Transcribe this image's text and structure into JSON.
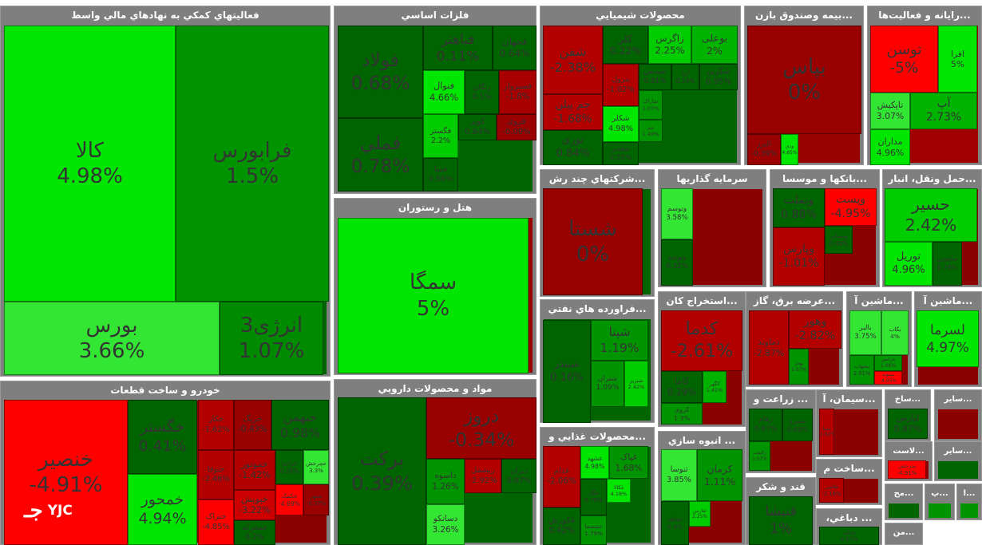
{
  "sectors": [
    {
      "title": "فعالیتهاي كمكي به نهادهاي مالي واسط",
      "fill": "#006400",
      "tiles": [
        {
          "symbol": "کالا",
          "change": "4.98%",
          "color": "#00e600"
        },
        {
          "symbol": "فرابورس",
          "change": "1.5%",
          "color": "#009400"
        },
        {
          "symbol": "بورس",
          "change": "3.66%",
          "color": "#33e633"
        },
        {
          "symbol": "انرژی3",
          "change": "1.07%",
          "color": "#008a00"
        }
      ]
    },
    {
      "title": "خودرو و ساخت قطعات",
      "fill": "#8b0000",
      "tiles": [
        {
          "symbol": "خنصیر",
          "change": "-4.91%",
          "color": "#ff0000"
        },
        {
          "symbol": "خگستر",
          "change": "0.41%",
          "color": "#006400"
        },
        {
          "symbol": "خمحور",
          "change": "4.94%",
          "color": "#00e600"
        },
        {
          "symbol": "خکار",
          "change": "-1.62%",
          "color": "#b30000"
        },
        {
          "symbol": "خریگ",
          "change": "-0.43%",
          "color": "#990000"
        },
        {
          "symbol": "خبهمن",
          "change": "0.98%",
          "color": "#006400"
        },
        {
          "symbol": "ختوقا",
          "change": "-2.46%",
          "color": "#b30000"
        },
        {
          "symbol": "خموتور",
          "change": "-1.42%",
          "color": "#b30000"
        },
        {
          "symbol": "ختراک",
          "change": "-4.85%",
          "color": "#ff0000"
        },
        {
          "symbol": "خزامیا",
          "change": "0.28%",
          "color": "#006400"
        },
        {
          "symbol": "خچرخش",
          "change": "3.3%",
          "color": "#33e633"
        },
        {
          "symbol": "خپویش",
          "change": "-3.22%",
          "color": "#cc0000"
        },
        {
          "symbol": "خکمک",
          "change": "-4.69%",
          "color": "#ff0000"
        },
        {
          "symbol": "خمهر",
          "change": "-0.37%",
          "color": "#990000"
        },
        {
          "symbol": "خمحرکه",
          "change": "0.2%",
          "color": "#006400"
        }
      ]
    },
    {
      "title": "فلزات اساسي",
      "fill": "#006400",
      "tiles": [
        {
          "symbol": "فولاد",
          "change": "0.68%",
          "color": "#006400"
        },
        {
          "symbol": "فملي",
          "change": "0.78%",
          "color": "#006400"
        },
        {
          "symbol": "فباهنر",
          "change": "0.11%",
          "color": "#006400"
        },
        {
          "symbol": "فجهان",
          "change": "0.64%",
          "color": "#006400"
        },
        {
          "symbol": "فنوال",
          "change": "4.66%",
          "color": "#00e600"
        },
        {
          "symbol": "رنگان",
          "change": "0.1%",
          "color": "#006400"
        },
        {
          "symbol": "فسبزوار",
          "change": "-1.8%",
          "color": "#a80000"
        },
        {
          "symbol": "فگستر",
          "change": "2.2%",
          "color": "#00cc00"
        },
        {
          "symbol": "کویر",
          "change": "0.84%",
          "color": "#006400"
        },
        {
          "symbol": "فروی",
          "change": "-0.09%",
          "color": "#990000"
        },
        {
          "symbol": "فسا",
          "change": "0.56%",
          "color": "#006400"
        }
      ]
    },
    {
      "title": "هتل و رستوران",
      "fill": "#990000",
      "tiles": [
        {
          "symbol": "سمگا",
          "change": "5%",
          "color": "#00e600"
        }
      ]
    },
    {
      "title": "مواد و محصولات دارويي",
      "fill": "#006400",
      "tiles": [
        {
          "symbol": "برکت",
          "change": "0.39%",
          "color": "#006400"
        },
        {
          "symbol": "دروز",
          "change": "-0.34%",
          "color": "#990000"
        },
        {
          "symbol": "داسوه",
          "change": "1.26%",
          "color": "#009400"
        },
        {
          "symbol": "دسانکو",
          "change": "3.26%",
          "color": "#33e633"
        },
        {
          "symbol": "ربشمل",
          "change": "-2.92%",
          "color": "#b30000"
        },
        {
          "symbol": "دیران",
          "change": "0.87%",
          "color": "#006400"
        }
      ]
    },
    {
      "title": "محصولات شيميايي",
      "fill": "#006400",
      "tiles": [
        {
          "symbol": "شفن",
          "change": "-2.38%",
          "color": "#b30000"
        },
        {
          "symbol": "جم پیلن",
          "change": "-1.68%",
          "color": "#b30000"
        },
        {
          "symbol": "نوری",
          "change": "0.84%",
          "color": "#006400"
        },
        {
          "symbol": "کلر",
          "change": "0.22%",
          "color": "#006400"
        },
        {
          "symbol": "زاگرس",
          "change": "2.25%",
          "color": "#00cc00"
        },
        {
          "symbol": "بوعلی",
          "change": "2%",
          "color": "#00b300"
        },
        {
          "symbol": "پترول",
          "change": "-1.02%",
          "color": "#b30000"
        },
        {
          "symbol": "شکلر",
          "change": "4.98%",
          "color": "#00e600"
        },
        {
          "symbol": "شپدیس",
          "change": "0.81%",
          "color": "#006400"
        },
        {
          "symbol": "آریا",
          "change": "0.19%",
          "color": "#006400"
        },
        {
          "symbol": "شکربن",
          "change": "0.95%",
          "color": "#006400"
        },
        {
          "symbol": "شاراک",
          "change": "1.07%",
          "color": "#009400"
        },
        {
          "symbol": "جم",
          "change": "1.49%",
          "color": "#009400"
        },
        {
          "symbol": "شغدیر",
          "change": "0.55%",
          "color": "#006400"
        }
      ]
    },
    {
      "title": "...بیمه وصندوق بازن",
      "fill": "#990000",
      "tiles": [
        {
          "symbol": "بپاس",
          "change": "0%",
          "color": "#990000"
        },
        {
          "symbol": "البرز",
          "change": "-0.39%",
          "color": "#990000"
        },
        {
          "symbol": "ودی",
          "change": "4.85%",
          "color": "#00e600"
        }
      ]
    },
    {
      "title": "...رایانه و فعالیت‌ها",
      "fill": "#a00000",
      "tiles": [
        {
          "symbol": "توسن",
          "change": "-5%",
          "color": "#ff0000"
        },
        {
          "symbol": "افرا",
          "change": "5%",
          "color": "#00e600"
        },
        {
          "symbol": "تاپکیش",
          "change": "3.07%",
          "color": "#33e633"
        },
        {
          "symbol": "آپ",
          "change": "2.73%",
          "color": "#00b300"
        },
        {
          "symbol": "مداران",
          "change": "4.96%",
          "color": "#00e600"
        }
      ]
    },
    {
      "title": "...شرکتهاي چند رش",
      "fill": "#006400",
      "tiles": [
        {
          "symbol": "شستا",
          "change": "0%",
          "color": "#990000"
        }
      ]
    },
    {
      "title": "...فراورده هاي نفتي",
      "fill": "#006400",
      "tiles": [
        {
          "symbol": "شبندر",
          "change": "0.16%",
          "color": "#006400"
        },
        {
          "symbol": "شپنا",
          "change": "1.19%",
          "color": "#009400"
        },
        {
          "symbol": "شتران",
          "change": "1.09%",
          "color": "#009400"
        },
        {
          "symbol": "شبریز",
          "change": "2.42%",
          "color": "#00cc00"
        }
      ]
    },
    {
      "title": "...محصولات غذایي و",
      "fill": "#006400",
      "tiles": [
        {
          "symbol": "غدام",
          "change": "-2.06%",
          "color": "#b30000"
        },
        {
          "symbol": "غشهد",
          "change": "4.98%",
          "color": "#00e600"
        },
        {
          "symbol": "غپاک",
          "change": "1.68%",
          "color": "#009400"
        },
        {
          "symbol": "غکورش",
          "change": "0.42%",
          "color": "#006400"
        },
        {
          "symbol": "غگل",
          "change": "0.78%",
          "color": "#006400"
        },
        {
          "symbol": "غکالا",
          "change": "4.18%",
          "color": "#00e600"
        },
        {
          "symbol": "غشصفا",
          "change": "1.79%",
          "color": "#009400"
        }
      ]
    },
    {
      "title": "سرمایه گذاریها",
      "fill": "#8b0000",
      "tiles": [
        {
          "symbol": "وتوسم",
          "change": "3.58%",
          "color": "#33e633"
        },
        {
          "symbol": "وتوشه",
          "change": "0.32%",
          "color": "#006400"
        }
      ]
    },
    {
      "title": "...استخراج کان",
      "fill": "#8b0000",
      "tiles": [
        {
          "symbol": "کدما",
          "change": "-2.61%",
          "color": "#b30000"
        },
        {
          "symbol": "کاما",
          "change": "0.29%",
          "color": "#006400"
        },
        {
          "symbol": "کگهر",
          "change": "1.41%",
          "color": "#00b300"
        },
        {
          "symbol": "کروی",
          "change": "1.3%",
          "color": "#009400"
        }
      ]
    },
    {
      "title": "... انبوه سازي",
      "fill": "#8b0000",
      "tiles": [
        {
          "symbol": "ثنوسا",
          "change": "3.85%",
          "color": "#33e633"
        },
        {
          "symbol": "کرمان",
          "change": "1.11%",
          "color": "#009400"
        },
        {
          "symbol": "ثشاهد",
          "change": "0.4%",
          "color": "#006400"
        },
        {
          "symbol": "ثفارس",
          "change": "2.25%",
          "color": "#00cc00"
        }
      ]
    },
    {
      "title": "...بانکها و موسسا",
      "fill": "#8b0000",
      "tiles": [
        {
          "symbol": "وبملت",
          "change": "0.88%",
          "color": "#006400"
        },
        {
          "symbol": "وپست",
          "change": "-4.95%",
          "color": "#ff0000"
        },
        {
          "symbol": "وپارس",
          "change": "-1.01%",
          "color": "#b30000"
        },
        {
          "symbol": "وبصادر",
          "change": "0.48%",
          "color": "#006400"
        }
      ]
    },
    {
      "title": "...حمل ونقل، انبار",
      "fill": "#8b0000",
      "tiles": [
        {
          "symbol": "حسیر",
          "change": "2.42%",
          "color": "#00cc00"
        },
        {
          "symbol": "توریل",
          "change": "4.96%",
          "color": "#00e600"
        },
        {
          "symbol": "حکشتی",
          "change": "0.78%",
          "color": "#006400"
        }
      ]
    },
    {
      "title": "...عرضه برق، گاز",
      "fill": "#8b0000",
      "tiles": [
        {
          "symbol": "دماوند",
          "change": "-2.87%",
          "color": "#b30000"
        },
        {
          "symbol": "وهور",
          "change": "-2.82%",
          "color": "#b30000"
        },
        {
          "symbol": "بهجر",
          "change": "1.07%",
          "color": "#009400"
        }
      ]
    },
    {
      "title": "...ماشین آ",
      "fill": "#8b0000",
      "tiles": [
        {
          "symbol": "بالبر",
          "change": "3.75%",
          "color": "#33e633"
        },
        {
          "symbol": "بکاب",
          "change": "4%",
          "color": "#33e633"
        },
        {
          "symbol": "بشهاب",
          "change": "2.01%",
          "color": "#009400"
        },
        {
          "symbol": "بترانس",
          "change": "1.06%",
          "color": "#009400"
        },
        {
          "symbol": "بسوید",
          "change": "-4.95%",
          "color": "#ff0000"
        }
      ]
    },
    {
      "title": "...ماشین آ",
      "fill": "#8b0000",
      "tiles": [
        {
          "symbol": "لسرما",
          "change": "4.97%",
          "color": "#00e600"
        }
      ]
    },
    {
      "title": "... زراعت و",
      "fill": "#8b0000",
      "tiles": [
        {
          "symbol": "زفام",
          "change": "0.87%",
          "color": "#006400"
        },
        {
          "symbol": "سمرغ",
          "change": "0.69%",
          "color": "#006400"
        },
        {
          "symbol": "زکشت",
          "change": "1.57%",
          "color": "#009400"
        }
      ]
    },
    {
      "title": "...سیمان، آ",
      "fill": "#8b0000",
      "tiles": [
        {
          "symbol": "سیتا",
          "change": "-2.92%",
          "color": "#b30000"
        }
      ]
    },
    {
      "title": "...ساخ",
      "fill": "#006400",
      "tiles": [
        {
          "symbol": "لپارس",
          "change": "0.87%",
          "color": "#006400"
        }
      ]
    },
    {
      "title": "...سایر",
      "fill": "#8b0000",
      "tiles": []
    },
    {
      "title": "قند و شکر",
      "fill": "#8b0000",
      "tiles": [
        {
          "symbol": "قنیشا",
          "change": "1%",
          "color": "#006400"
        }
      ]
    },
    {
      "title": "...ساخت م",
      "fill": "#8b0000",
      "tiles": [
        {
          "symbol": "فلامی",
          "change": "-2.16%",
          "color": "#b30000"
        }
      ]
    },
    {
      "title": "... دباغي،",
      "fill": "#006400",
      "tiles": [
        {
          "symbol": "وملی",
          "change": "0.57%",
          "color": "#006400"
        }
      ]
    },
    {
      "title": "...لاست",
      "fill": "#8b0000",
      "tiles": [
        {
          "symbol": "پدرخش",
          "change": "-4.91%",
          "color": "#ff0000"
        }
      ]
    },
    {
      "title": "...سایر",
      "fill": "#006400",
      "tiles": []
    },
    {
      "title": "...مح",
      "fill": "#006400",
      "tiles": []
    },
    {
      "title": "...پ",
      "fill": "#009400",
      "tiles": []
    },
    {
      "title": "...ا",
      "fill": "#009400",
      "tiles": []
    },
    {
      "title": "...من",
      "fill": "#006400",
      "tiles": []
    }
  ],
  "logo": {
    "glyph": "جـ",
    "text": "YJC"
  }
}
